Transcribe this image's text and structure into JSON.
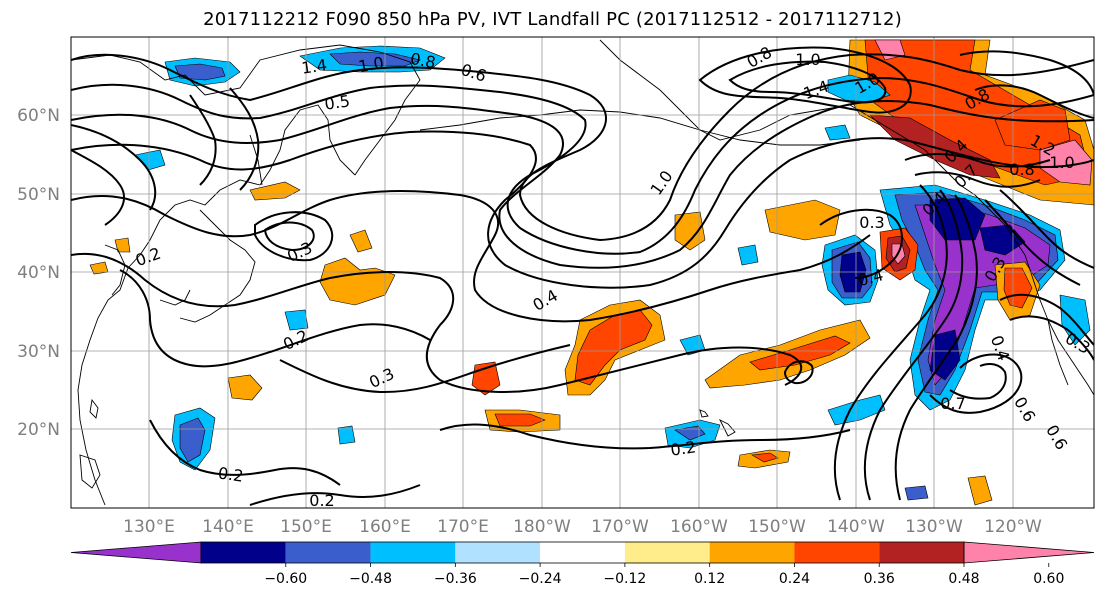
{
  "title": "2017112212 F090 850 hPa PV, IVT Landfall PC (2017112512 - 2017112712)",
  "lat_labels": [
    "60°N",
    "50°N",
    "40°N",
    "30°N",
    "20°N"
  ],
  "lon_labels": [
    "130°E",
    "140°E",
    "150°E",
    "160°E",
    "170°E",
    "180°W",
    "170°W",
    "160°W",
    "150°W",
    "140°W",
    "130°W",
    "120°W"
  ],
  "colorbar": {
    "colors": [
      "#9932cc",
      "#00008b",
      "#3a5fcd",
      "#00bfff",
      "#b0e2ff",
      "#ffffff",
      "#ffec8b",
      "#ffa500",
      "#ff4500",
      "#b22222",
      "#ff82ab"
    ],
    "ticks": [
      "−0.60",
      "−0.48",
      "−0.36",
      "−0.24",
      "−0.12",
      "0.12",
      "0.24",
      "0.36",
      "0.48",
      "0.60"
    ]
  },
  "contour_labels": [
    "1.4",
    "1.0",
    "0.8",
    "0.6",
    "0.5",
    "0.3",
    "0.2",
    "0.2",
    "0.4",
    "0.3",
    "0.2",
    "0.2",
    "0.2",
    "1.0",
    "0.3",
    "0.4",
    "0.3",
    "0.7",
    "0.6",
    "0.4",
    "0.3",
    "1.0",
    "0.8",
    "0.8",
    "1.0",
    "1.4",
    "0.8",
    "1.2",
    "0.4",
    "1.0",
    "0.4",
    "0.7",
    "0.6"
  ]
}
